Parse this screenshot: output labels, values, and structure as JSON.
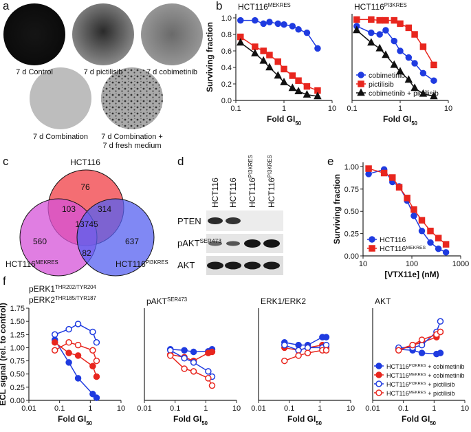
{
  "panel_labels": [
    "a",
    "b",
    "c",
    "d",
    "e",
    "f"
  ],
  "plates": [
    {
      "label": [
        "7 d Control"
      ]
    },
    {
      "label": [
        "7 d pictilisib"
      ]
    },
    {
      "label": [
        "7 d cobimetinib"
      ]
    },
    {
      "label": [
        "7 d Combination"
      ]
    },
    {
      "label": [
        "7 d Combination +",
        "7 d fresh medium"
      ]
    }
  ],
  "venn": {
    "sets": [
      {
        "label": "HCT116"
      },
      {
        "label": "HCT116",
        "sup": "MEKRES"
      },
      {
        "label": "HCT116",
        "sup": "PI3KRES"
      }
    ],
    "regions": [
      "76",
      "103",
      "314",
      "13745",
      "560",
      "82",
      "637"
    ]
  },
  "blot": {
    "columns": [
      {
        "label": "HCT116"
      },
      {
        "label": "HCT116"
      },
      {
        "label": "HCT116",
        "sup": "PI3KRES"
      },
      {
        "label": "HCT116",
        "sup": "PI3KRES"
      }
    ],
    "rows": [
      {
        "label": "PTEN"
      },
      {
        "label": "pAKT",
        "sup": "SER473"
      },
      {
        "label": "AKT"
      }
    ]
  },
  "chart_data": [
    {
      "type": "line",
      "title": "HCT116",
      "title_sup": "MEKRES",
      "xlabel": "Fold GI",
      "xlabel_sub": "50",
      "ylabel": "Surviving fraction",
      "xlog": true,
      "xlim": [
        0.1,
        10
      ],
      "xticks": [
        0.1,
        1,
        10
      ],
      "ylim": [
        0,
        1.05
      ],
      "yticks": [
        {
          "value": 0,
          "label": "0.0"
        },
        0.2,
        0.4,
        0.6,
        0.8,
        {
          "value": 1,
          "label": "1.0"
        }
      ],
      "x": [
        0.125,
        0.25,
        0.375,
        0.5,
        0.75,
        1,
        1.5,
        2,
        3,
        5
      ],
      "series": [
        {
          "name": "cobimetinib",
          "color": "#1f3be0",
          "marker": "circle",
          "filled": true,
          "values": [
            0.97,
            0.97,
            0.93,
            0.95,
            0.93,
            0.92,
            0.9,
            0.86,
            0.82,
            0.63
          ]
        },
        {
          "name": "pictilisib",
          "color": "#e8261e",
          "marker": "square",
          "filled": true,
          "values": [
            0.77,
            0.65,
            0.6,
            0.55,
            0.47,
            0.38,
            0.3,
            0.24,
            0.17,
            0.12
          ]
        },
        {
          "name": "cobimetinib + pictilisib",
          "color": "#111111",
          "marker": "triangle",
          "filled": true,
          "values": [
            0.7,
            0.57,
            0.48,
            0.4,
            0.3,
            0.22,
            0.15,
            0.11,
            0.07,
            0.05
          ]
        }
      ]
    },
    {
      "type": "line",
      "title": "HCT116",
      "title_sup": "PI3KRES",
      "xlabel": "Fold GI",
      "xlabel_sub": "50",
      "xlog": true,
      "xlim": [
        0.1,
        10
      ],
      "xticks": [
        0.1,
        1,
        10
      ],
      "ylim": [
        0,
        1.05
      ],
      "legend": "lower left",
      "x": [
        0.125,
        0.25,
        0.375,
        0.5,
        0.75,
        1,
        1.5,
        2,
        3,
        5
      ],
      "series": [
        {
          "name": "cobimetinib",
          "color": "#1f3be0",
          "marker": "circle",
          "filled": true,
          "values": [
            0.9,
            0.82,
            0.8,
            0.85,
            0.72,
            0.6,
            0.52,
            0.45,
            0.33,
            0.24
          ]
        },
        {
          "name": "pictilisib",
          "color": "#e8261e",
          "marker": "square",
          "filled": true,
          "values": [
            0.98,
            0.98,
            0.97,
            0.97,
            0.97,
            0.93,
            0.88,
            0.8,
            0.65,
            0.43
          ]
        },
        {
          "name": "cobimetinib + pictilisib",
          "color": "#111111",
          "marker": "triangle",
          "filled": true,
          "values": [
            0.85,
            0.7,
            0.63,
            0.55,
            0.43,
            0.35,
            0.25,
            0.15,
            0.08,
            0.05
          ]
        }
      ]
    },
    {
      "type": "line",
      "xlabel": "[VTX11e] (nM)",
      "ylabel": "Surviving fraction",
      "xlog": true,
      "xlim": [
        10,
        1000
      ],
      "xticks": [
        10,
        100,
        1000
      ],
      "ylim": [
        0,
        1.05
      ],
      "yticks": [
        {
          "value": 0,
          "label": "0.00"
        },
        0.25,
        {
          "value": 0.5,
          "label": "0.50"
        },
        0.75,
        {
          "value": 1,
          "label": "1.00"
        }
      ],
      "legend": "lower left",
      "x": [
        13,
        27,
        40,
        55,
        80,
        110,
        160,
        240,
        350,
        500
      ],
      "series": [
        {
          "name": "HCT116",
          "color": "#1f3be0",
          "marker": "circle",
          "filled": true,
          "values": [
            0.92,
            0.97,
            0.83,
            0.78,
            0.62,
            0.45,
            0.28,
            0.15,
            0.08,
            0.04
          ]
        },
        {
          "name": "HCT116",
          "name_sup": "MEKRES",
          "color": "#e8261e",
          "marker": "square",
          "filled": true,
          "values": [
            0.98,
            0.93,
            0.88,
            0.77,
            0.65,
            0.52,
            0.4,
            0.28,
            0.2,
            0.13
          ]
        }
      ]
    },
    {
      "type": "line",
      "title": "pERK1",
      "title_sup": "THR202/TYR204",
      "title2": "pERK2",
      "title2_sup": "THR185/TYR187",
      "xlabel": "Fold GI",
      "xlabel_sub": "50",
      "ylabel": "ECL signal (rel. to control)",
      "xlog": true,
      "xlim": [
        0.01,
        10
      ],
      "xticks": [
        0.01,
        0.1,
        1,
        10
      ],
      "ylim": [
        0,
        1.75
      ],
      "yticks": [
        {
          "value": 0,
          "label": "0.00"
        },
        0.25,
        {
          "value": 0.5,
          "label": "0.50"
        },
        0.75,
        {
          "value": 1,
          "label": "1.00"
        },
        1.25,
        {
          "value": 1.5,
          "label": "1.50"
        },
        1.75
      ],
      "x": [
        0.07,
        0.2,
        0.4,
        1.2,
        1.6
      ],
      "series": [
        {
          "color": "#1f3be0",
          "marker": "circle",
          "filled": true,
          "values": [
            1.15,
            0.72,
            0.42,
            0.12,
            0.05
          ]
        },
        {
          "color": "#e8261e",
          "marker": "circle",
          "filled": true,
          "values": [
            1.1,
            0.9,
            0.85,
            0.65,
            0.45
          ]
        },
        {
          "color": "#1f3be0",
          "marker": "circle",
          "filled": false,
          "values": [
            1.25,
            1.35,
            1.45,
            1.3,
            1.1
          ]
        },
        {
          "color": "#e8261e",
          "marker": "circle",
          "filled": false,
          "values": [
            0.95,
            1.1,
            1.05,
            0.95,
            0.75
          ]
        }
      ]
    },
    {
      "type": "line",
      "title": "pAKT",
      "title_sup": "SER473",
      "xlabel": "Fold GI",
      "xlabel_sub": "50",
      "xlog": true,
      "xlim": [
        0.01,
        10
      ],
      "xticks": [
        0.01,
        0.1,
        1,
        10
      ],
      "ylim": [
        0,
        1.75
      ],
      "x": [
        0.07,
        0.2,
        0.4,
        1.2,
        1.6
      ],
      "series": [
        {
          "color": "#1f3be0",
          "marker": "circle",
          "filled": true,
          "values": [
            0.97,
            0.95,
            0.92,
            0.93,
            0.97
          ]
        },
        {
          "color": "#e8261e",
          "marker": "circle",
          "filled": true,
          "values": [
            0.87,
            0.82,
            0.75,
            0.9,
            0.92
          ]
        },
        {
          "color": "#1f3be0",
          "marker": "circle",
          "filled": false,
          "values": [
            0.95,
            0.8,
            0.72,
            0.55,
            0.45
          ]
        },
        {
          "color": "#e8261e",
          "marker": "circle",
          "filled": false,
          "values": [
            0.85,
            0.6,
            0.55,
            0.42,
            0.28
          ]
        }
      ]
    },
    {
      "type": "line",
      "title": "ERK1/ERK2",
      "xlabel": "Fold GI",
      "xlabel_sub": "50",
      "xlog": true,
      "xlim": [
        0.01,
        10
      ],
      "xticks": [
        0.01,
        0.1,
        1,
        10
      ],
      "ylim": [
        0,
        1.75
      ],
      "x": [
        0.07,
        0.2,
        0.4,
        1.2,
        1.6
      ],
      "series": [
        {
          "color": "#1f3be0",
          "marker": "circle",
          "filled": true,
          "values": [
            1.1,
            1.05,
            1.05,
            1.2,
            1.2
          ]
        },
        {
          "color": "#e8261e",
          "marker": "circle",
          "filled": true,
          "values": [
            1.0,
            0.95,
            1.0,
            1.05,
            1.0
          ]
        },
        {
          "color": "#1f3be0",
          "marker": "circle",
          "filled": false,
          "values": [
            1.05,
            0.95,
            1.0,
            1.0,
            1.05
          ]
        },
        {
          "color": "#e8261e",
          "marker": "circle",
          "filled": false,
          "values": [
            0.75,
            0.85,
            0.9,
            0.95,
            0.95
          ]
        }
      ]
    },
    {
      "type": "line",
      "title": "AKT",
      "xlabel": "Fold GI",
      "xlabel_sub": "50",
      "xlog": true,
      "xlim": [
        0.01,
        10
      ],
      "xticks": [
        0.01,
        0.1,
        1,
        10
      ],
      "ylim": [
        0,
        1.75
      ],
      "legend": "lower right",
      "x": [
        0.07,
        0.2,
        0.4,
        1.2,
        1.6
      ],
      "series": [
        {
          "cell_line": "HCT116",
          "cell_line_sup": "PI3KRES",
          "name": "+ cobimetinib",
          "color": "#1f3be0",
          "marker": "circle",
          "filled": true,
          "values": [
            0.97,
            0.95,
            0.9,
            0.88,
            0.9
          ]
        },
        {
          "cell_line": "HCT116",
          "cell_line_sup": "MEKRES",
          "name": "+ cobimetinib",
          "color": "#e8261e",
          "marker": "circle",
          "filled": true,
          "values": [
            0.97,
            1.05,
            1.1,
            1.2,
            1.3
          ]
        },
        {
          "cell_line": "HCT116",
          "cell_line_sup": "PI3KRES",
          "name": "+ pictilisib",
          "color": "#1f3be0",
          "marker": "circle",
          "filled": false,
          "values": [
            1.0,
            1.0,
            1.05,
            1.3,
            1.5
          ]
        },
        {
          "cell_line": "HCT116",
          "cell_line_sup": "MEKRES",
          "name": "+ pictilisib",
          "color": "#e8261e",
          "marker": "circle",
          "filled": false,
          "values": [
            0.95,
            1.05,
            1.15,
            1.25,
            1.3
          ]
        }
      ]
    }
  ]
}
